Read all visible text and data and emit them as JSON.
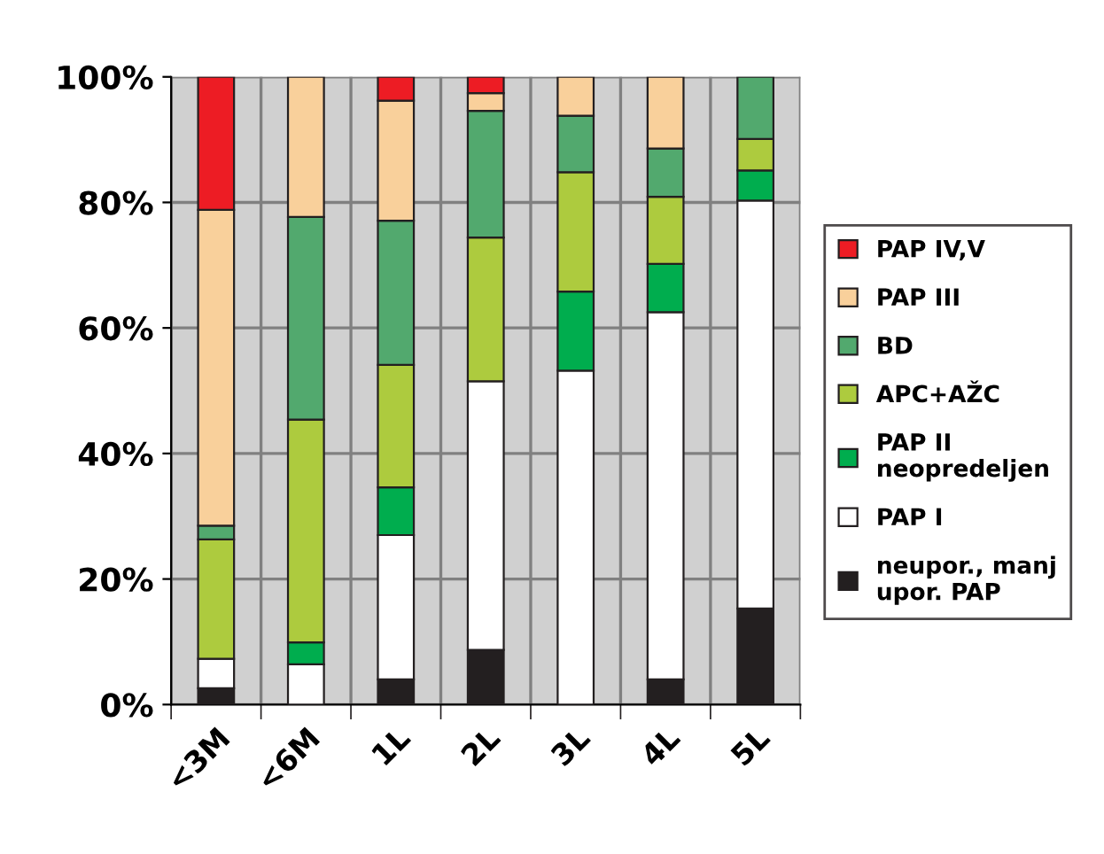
{
  "chart_data": {
    "type": "bar",
    "stacked": true,
    "categories": [
      "<3M",
      "<6M",
      "1L",
      "2L",
      "3L",
      "4L",
      "5L"
    ],
    "series": [
      {
        "name": "neupor., manj\nupor. PAP",
        "color": "#231f20",
        "values": [
          2.6,
          0,
          4,
          8.7,
          0,
          4,
          15.3
        ]
      },
      {
        "name": "PAP I",
        "color": "#ffffff",
        "values": [
          4.7,
          6.4,
          23,
          42.8,
          53.2,
          58.5,
          65
        ]
      },
      {
        "name": "PAP II\nneopredeljen",
        "color": "#00ad4e",
        "values": [
          0,
          3.5,
          7.6,
          0,
          12.6,
          7.7,
          4.8
        ]
      },
      {
        "name": "APC+AŽC",
        "color": "#adcb3e",
        "values": [
          19,
          35.5,
          19.5,
          22.9,
          19,
          10.7,
          5
        ]
      },
      {
        "name": "BD",
        "color": "#52a96e",
        "values": [
          2.2,
          32.3,
          23,
          20.2,
          9,
          7.7,
          9.9
        ]
      },
      {
        "name": "PAP III",
        "color": "#f9d09b",
        "values": [
          50.3,
          22.3,
          19.1,
          2.8,
          6.2,
          11.4,
          0
        ]
      },
      {
        "name": "PAP IV,V",
        "color": "#ed1c24",
        "values": [
          21.2,
          0,
          3.8,
          2.6,
          0,
          0,
          0
        ]
      }
    ],
    "ylim": [
      0,
      100
    ],
    "yticks": [
      {
        "value": 0,
        "label": "0%"
      },
      {
        "value": 20,
        "label": "20%"
      },
      {
        "value": 40,
        "label": "40%"
      },
      {
        "value": 60,
        "label": "60%"
      },
      {
        "value": 80,
        "label": "80%"
      },
      {
        "value": 100,
        "label": "100%"
      }
    ],
    "grid": true,
    "legend": "right"
  }
}
